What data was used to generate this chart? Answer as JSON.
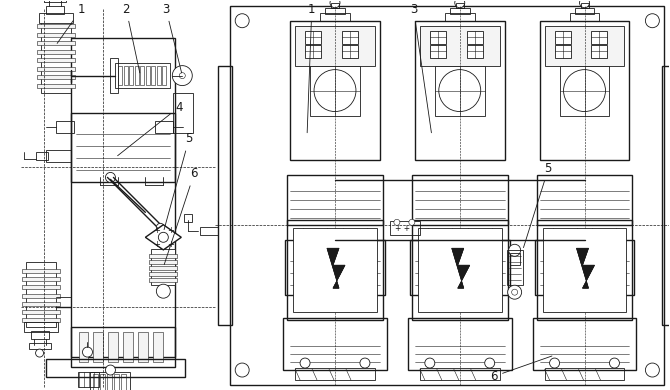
{
  "figsize": [
    6.7,
    3.9
  ],
  "dpi": 100,
  "background_color": "#ffffff",
  "line_color": "#1a1a1a",
  "gray_fill": "#e8e8e8",
  "light_fill": "#f4f4f4"
}
